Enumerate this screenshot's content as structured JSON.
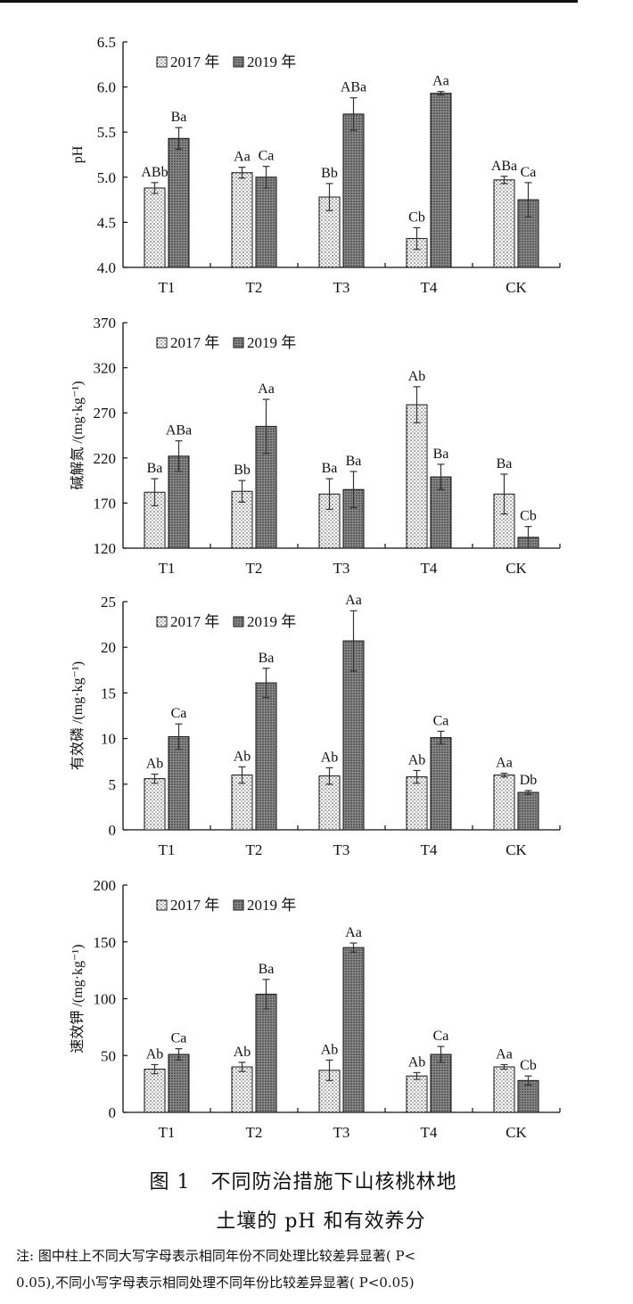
{
  "chart_data": [
    {
      "type": "bar",
      "categories": [
        "T1",
        "T2",
        "T3",
        "T4",
        "CK"
      ],
      "ylabel": "pH",
      "ylim": [
        4.0,
        6.5
      ],
      "yticks": [
        "4.0",
        "4.5",
        "5.0",
        "5.5",
        "6.0",
        "6.5"
      ],
      "legend": "top-left",
      "series": [
        {
          "name": "2017 年",
          "values": [
            4.88,
            5.05,
            4.78,
            4.32,
            4.97
          ],
          "errors": [
            0.06,
            0.06,
            0.15,
            0.12,
            0.04
          ],
          "labels": [
            "ABb",
            "Aa",
            "Bb",
            "Cb",
            "ABa"
          ]
        },
        {
          "name": "2019 年",
          "values": [
            5.43,
            5.0,
            5.7,
            5.93,
            4.75
          ],
          "errors": [
            0.12,
            0.12,
            0.18,
            0.02,
            0.19
          ],
          "labels": [
            "Ba",
            "Ca",
            "ABa",
            "Aa",
            "Ca"
          ]
        }
      ]
    },
    {
      "type": "bar",
      "categories": [
        "T1",
        "T2",
        "T3",
        "T4",
        "CK"
      ],
      "ylabel": "碱解氮 /(mg·kg⁻¹)",
      "ylim": [
        120,
        370
      ],
      "yticks": [
        "120",
        "170",
        "220",
        "270",
        "320",
        "370"
      ],
      "legend": "top-left",
      "series": [
        {
          "name": "2017 年",
          "values": [
            182,
            183,
            180,
            279,
            180
          ],
          "errors": [
            15,
            12,
            17,
            20,
            22
          ],
          "labels": [
            "Ba",
            "Bb",
            "Ba",
            "Ab",
            "Ba"
          ]
        },
        {
          "name": "2019 年",
          "values": [
            222,
            255,
            185,
            199,
            132
          ],
          "errors": [
            17,
            30,
            20,
            14,
            12
          ],
          "labels": [
            "ABa",
            "Aa",
            "Ba",
            "Ba",
            "Cb"
          ]
        }
      ]
    },
    {
      "type": "bar",
      "categories": [
        "T1",
        "T2",
        "T3",
        "T4",
        "CK"
      ],
      "ylabel": "有效磷 /(mg·kg⁻¹)",
      "ylim": [
        0,
        25
      ],
      "yticks": [
        "0",
        "5",
        "10",
        "15",
        "20",
        "25"
      ],
      "legend": "top-left",
      "series": [
        {
          "name": "2017 年",
          "values": [
            5.6,
            6.0,
            5.9,
            5.8,
            6.0
          ],
          "errors": [
            0.5,
            0.9,
            0.9,
            0.7,
            0.2
          ],
          "labels": [
            "Ab",
            "Ab",
            "Ab",
            "Ab",
            "Aa"
          ]
        },
        {
          "name": "2019 年",
          "values": [
            10.2,
            16.1,
            20.7,
            10.1,
            4.1
          ],
          "errors": [
            1.4,
            1.6,
            3.3,
            0.7,
            0.2
          ],
          "labels": [
            "Ca",
            "Ba",
            "Aa",
            "Ca",
            "Db"
          ]
        }
      ]
    },
    {
      "type": "bar",
      "categories": [
        "T1",
        "T2",
        "T3",
        "T4",
        "CK"
      ],
      "ylabel": "速效钾 /(mg·kg⁻¹)",
      "ylim": [
        0,
        200
      ],
      "yticks": [
        "0",
        "50",
        "100",
        "150",
        "200"
      ],
      "legend": "top-left",
      "series": [
        {
          "name": "2017 年",
          "values": [
            38,
            40,
            37,
            32,
            40
          ],
          "errors": [
            4,
            4,
            9,
            3,
            2
          ],
          "labels": [
            "Ab",
            "Ab",
            "Ab",
            "Ab",
            "Aa"
          ]
        },
        {
          "name": "2019 年",
          "values": [
            51,
            104,
            145,
            51,
            28
          ],
          "errors": [
            5,
            13,
            4,
            7,
            4
          ],
          "labels": [
            "Ca",
            "Ba",
            "Aa",
            "Ca",
            "Cb"
          ]
        }
      ]
    }
  ],
  "caption": {
    "line1": "图 1　不同防治措施下山核桃林地",
    "line2": "土壤的 pH 和有效养分"
  },
  "note": {
    "line1": "注: 图中柱上不同大写字母表示相同年份不同处理比较差异显著( P<",
    "line2": "0.05),不同小写字母表示相同处理不同年份比较差异显著( P<0.05)"
  },
  "colors": {
    "bar_2017_fill": "#ffffff",
    "bar_2017_dots": "#333333",
    "bar_2019_fill": "#8a8a8a",
    "bar_2019_dots": "#222222",
    "axis": "#111111"
  }
}
